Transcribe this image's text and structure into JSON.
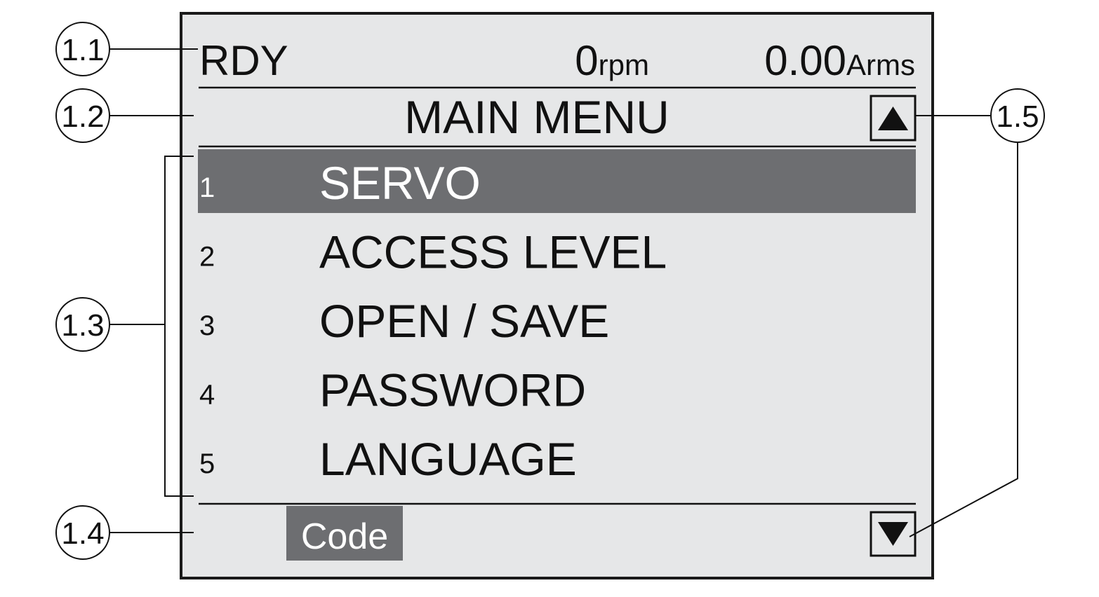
{
  "status_bar": {
    "state": "RDY",
    "speed_value": "0",
    "speed_unit": "rpm",
    "current_value": "0.00",
    "current_unit": "Arms"
  },
  "title": "MAIN MENU",
  "menu": {
    "selected_index": 0,
    "items": [
      {
        "number": "1",
        "label": "SERVO"
      },
      {
        "number": "2",
        "label": "ACCESS LEVEL"
      },
      {
        "number": "3",
        "label": "OPEN / SAVE"
      },
      {
        "number": "4",
        "label": "PASSWORD"
      },
      {
        "number": "5",
        "label": "LANGUAGE"
      }
    ]
  },
  "footer": {
    "softkey_label": "Code"
  },
  "scroll": {
    "up_icon": "triangle-up-icon",
    "down_icon": "triangle-down-icon"
  },
  "callouts": [
    "1.1",
    "1.2",
    "1.3",
    "1.4",
    "1.5"
  ],
  "colors": {
    "screen_bg": "#e6e7e8",
    "highlight": "#6d6e71",
    "frame": "#1a1a1a",
    "highlight_text": "#ffffff"
  }
}
